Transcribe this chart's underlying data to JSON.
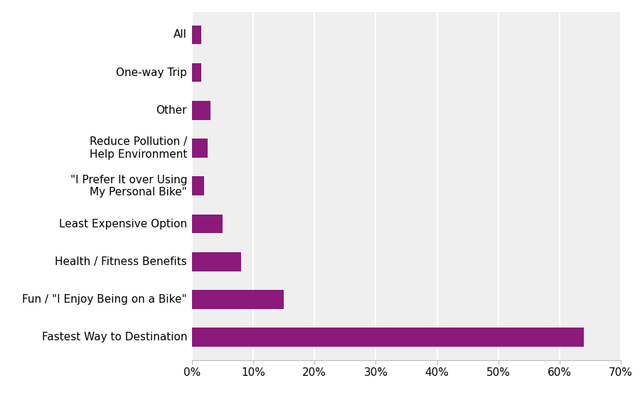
{
  "categories": [
    "Fastest Way to Destination",
    "Fun / \"I Enjoy Being on a Bike\"",
    "Health / Fitness Benefits",
    "Least Expensive Option",
    "\"I Prefer It over Using\nMy Personal Bike\"",
    "Reduce Pollution /\nHelp Environment",
    "Other",
    "One-way Trip",
    "All"
  ],
  "values": [
    0.64,
    0.15,
    0.08,
    0.05,
    0.02,
    0.025,
    0.03,
    0.015,
    0.015
  ],
  "bar_color": "#8B1A7A",
  "xlim": [
    0,
    0.7
  ],
  "xticks": [
    0.0,
    0.1,
    0.2,
    0.3,
    0.4,
    0.5,
    0.6,
    0.7
  ],
  "background_color": "#FFFFFF",
  "plot_background_color": "#EFEFEF",
  "grid_color": "#FFFFFF",
  "tick_label_fontsize": 11,
  "bar_height": 0.5
}
